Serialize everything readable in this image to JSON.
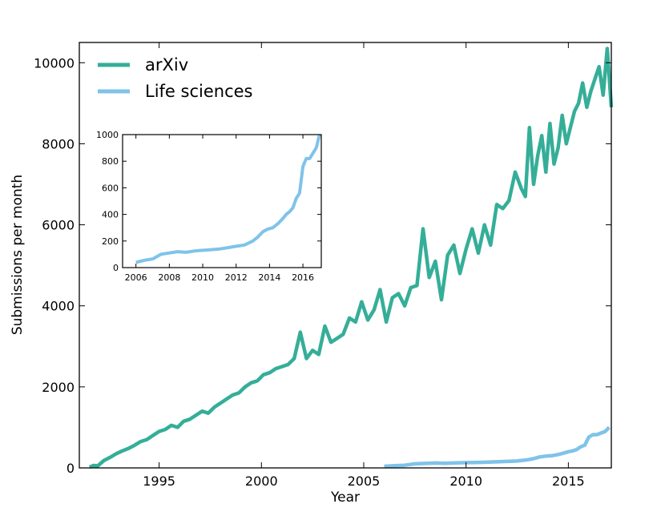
{
  "chart_data": {
    "type": "line",
    "title": "",
    "xlabel": "Year",
    "ylabel": "Submissions per month",
    "xlim": [
      1991.1,
      2017.1
    ],
    "ylim": [
      0,
      10500
    ],
    "xticks": [
      1995,
      2000,
      2005,
      2010,
      2015
    ],
    "yticks": [
      0,
      2000,
      4000,
      6000,
      8000,
      10000
    ],
    "xtick_labels": [
      "1995",
      "2000",
      "2005",
      "2010",
      "2015"
    ],
    "ytick_labels": [
      "0",
      "2000",
      "4000",
      "6000",
      "8000",
      "10000"
    ],
    "grid": false,
    "legend_position": "top-left",
    "series": [
      {
        "name": "arXiv",
        "color": "#35ae98",
        "x": [
          1991.6,
          1991.8,
          1992.0,
          1992.3,
          1992.6,
          1992.9,
          1993.2,
          1993.5,
          1993.8,
          1994.1,
          1994.4,
          1994.7,
          1995.0,
          1995.3,
          1995.6,
          1995.9,
          1996.2,
          1996.5,
          1996.8,
          1997.1,
          1997.4,
          1997.7,
          1998.0,
          1998.3,
          1998.6,
          1998.9,
          1999.2,
          1999.5,
          1999.8,
          2000.1,
          2000.4,
          2000.7,
          2001.0,
          2001.3,
          2001.6,
          2001.9,
          2002.2,
          2002.5,
          2002.8,
          2003.1,
          2003.4,
          2003.7,
          2004.0,
          2004.3,
          2004.6,
          2004.9,
          2005.2,
          2005.5,
          2005.8,
          2006.1,
          2006.4,
          2006.7,
          2007.0,
          2007.3,
          2007.6,
          2007.9,
          2008.2,
          2008.5,
          2008.8,
          2009.1,
          2009.4,
          2009.7,
          2010.0,
          2010.3,
          2010.6,
          2010.9,
          2011.2,
          2011.5,
          2011.8,
          2012.1,
          2012.4,
          2012.7,
          2012.9,
          2013.1,
          2013.3,
          2013.5,
          2013.7,
          2013.9,
          2014.1,
          2014.3,
          2014.5,
          2014.7,
          2014.9,
          2015.1,
          2015.3,
          2015.5,
          2015.7,
          2015.9,
          2016.1,
          2016.3,
          2016.5,
          2016.7,
          2016.9,
          2017.1
        ],
        "values": [
          20,
          60,
          50,
          180,
          260,
          350,
          420,
          480,
          560,
          650,
          700,
          800,
          900,
          950,
          1050,
          1000,
          1150,
          1200,
          1300,
          1400,
          1350,
          1500,
          1600,
          1700,
          1800,
          1850,
          2000,
          2100,
          2150,
          2300,
          2350,
          2450,
          2500,
          2550,
          2700,
          3350,
          2700,
          2900,
          2800,
          3500,
          3100,
          3200,
          3300,
          3700,
          3600,
          4100,
          3650,
          3900,
          4400,
          3600,
          4200,
          4300,
          4000,
          4450,
          4500,
          5900,
          4700,
          5100,
          4150,
          5250,
          5500,
          4800,
          5400,
          5900,
          5300,
          6000,
          5500,
          6500,
          6400,
          6600,
          7300,
          6900,
          6700,
          8400,
          7000,
          7700,
          8200,
          7300,
          8500,
          7500,
          7900,
          8700,
          8000,
          8400,
          8800,
          9000,
          9500,
          8900,
          9300,
          9600,
          9900,
          9200,
          10350,
          8900
        ]
      },
      {
        "name": "Life sciences",
        "color": "#7fc3ea",
        "x": [
          2006.0,
          2006.5,
          2007.0,
          2007.5,
          2008.0,
          2008.5,
          2009.0,
          2009.5,
          2010.0,
          2010.5,
          2011.0,
          2011.5,
          2012.0,
          2012.5,
          2013.0,
          2013.3,
          2013.6,
          2013.9,
          2014.2,
          2014.5,
          2014.8,
          2015.0,
          2015.2,
          2015.4,
          2015.6,
          2015.8,
          2016.0,
          2016.2,
          2016.4,
          2016.6,
          2016.8,
          2017.0
        ],
        "values": [
          40,
          55,
          65,
          100,
          110,
          120,
          115,
          125,
          130,
          135,
          140,
          150,
          160,
          170,
          200,
          230,
          270,
          290,
          300,
          330,
          370,
          400,
          420,
          450,
          520,
          560,
          760,
          820,
          820,
          860,
          900,
          1000
        ]
      }
    ],
    "legend": [
      "arXiv",
      "Life sciences"
    ],
    "inset": {
      "type": "line",
      "series_name": "Life sciences",
      "xlim": [
        2005.2,
        2017.1
      ],
      "ylim": [
        0,
        1000
      ],
      "xticks": [
        2006,
        2008,
        2010,
        2012,
        2014,
        2016
      ],
      "yticks": [
        0,
        200,
        400,
        600,
        800,
        1000
      ],
      "xtick_labels": [
        "2006",
        "2008",
        "2010",
        "2012",
        "2014",
        "2016"
      ],
      "ytick_labels": [
        "0",
        "200",
        "400",
        "600",
        "800",
        "1000"
      ]
    }
  }
}
